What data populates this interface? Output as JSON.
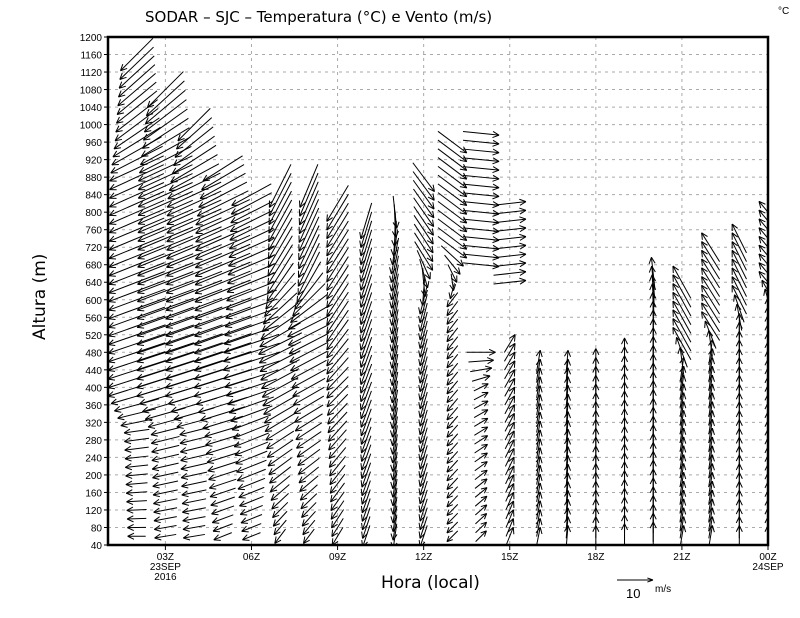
{
  "chart_data": {
    "type": "vector",
    "title": "SODAR – SJC – Temperatura (°C) e Vento (m/s)",
    "corner_unit": "°C",
    "xlabel": "Hora (local)",
    "ylabel": "Altura (m)",
    "xlim": [
      1,
      24
    ],
    "ylim": [
      40,
      1200
    ],
    "grid": true,
    "x_ticks": [
      {
        "hour": 3,
        "label": "03Z",
        "sub1": "23SEP",
        "sub2": "2016"
      },
      {
        "hour": 6,
        "label": "06Z"
      },
      {
        "hour": 9,
        "label": "09Z"
      },
      {
        "hour": 12,
        "label": "12Z"
      },
      {
        "hour": 15,
        "label": "15Z"
      },
      {
        "hour": 18,
        "label": "18Z"
      },
      {
        "hour": 21,
        "label": "21Z"
      },
      {
        "hour": 24,
        "label": "00Z",
        "sub1": "24SEP"
      }
    ],
    "y_ticks": [
      40,
      80,
      120,
      160,
      200,
      240,
      280,
      320,
      360,
      400,
      440,
      480,
      520,
      560,
      600,
      640,
      680,
      720,
      760,
      800,
      840,
      880,
      920,
      960,
      1000,
      1040,
      1080,
      1120,
      1160,
      1200
    ],
    "level_step_m": 20,
    "reference_vector": {
      "value": 10,
      "unit": "m/s"
    },
    "columns": [
      {
        "hour": 2,
        "segments": [
          [
            60,
            1160,
            [
              [
                60,
                -5,
                0
              ],
              [
                300,
                -7,
                -1
              ],
              [
                400,
                -16,
                -5
              ],
              [
                900,
                -15,
                -7
              ],
              [
                1000,
                -12,
                -9
              ],
              [
                1160,
                -9,
                -9
              ]
            ]
          ]
        ]
      },
      {
        "hour": 3,
        "segments": [
          [
            60,
            1080,
            [
              [
                60,
                -6,
                -1
              ],
              [
                300,
                -8,
                -2
              ],
              [
                400,
                -16,
                -5
              ],
              [
                900,
                -15,
                -7
              ],
              [
                1080,
                -10,
                -10
              ]
            ]
          ]
        ]
      },
      {
        "hour": 4,
        "segments": [
          [
            60,
            1000,
            [
              [
                60,
                -6,
                -1
              ],
              [
                300,
                -8,
                -2
              ],
              [
                400,
                -16,
                -5
              ],
              [
                850,
                -15,
                -7
              ],
              [
                1000,
                -9,
                -9
              ]
            ]
          ]
        ]
      },
      {
        "hour": 5,
        "segments": [
          [
            60,
            900,
            [
              [
                60,
                -5,
                -2
              ],
              [
                300,
                -10,
                -3
              ],
              [
                400,
                -16,
                -5
              ],
              [
                800,
                -15,
                -7
              ],
              [
                900,
                -11,
                -7
              ]
            ]
          ]
        ]
      },
      {
        "hour": 6,
        "segments": [
          [
            60,
            840,
            [
              [
                60,
                -5,
                -2
              ],
              [
                300,
                -10,
                -4
              ],
              [
                450,
                -16,
                -5
              ],
              [
                840,
                -11,
                -6
              ]
            ]
          ]
        ]
      },
      {
        "hour": 7,
        "segments": [
          [
            60,
            860,
            [
              [
                60,
                -3,
                -4
              ],
              [
                300,
                -8,
                -5
              ],
              [
                500,
                -12,
                -6
              ],
              [
                650,
                -7,
                -11
              ],
              [
                860,
                -6,
                -12
              ]
            ]
          ]
        ]
      },
      {
        "hour": 8,
        "segments": [
          [
            60,
            860,
            [
              [
                60,
                -3,
                -4
              ],
              [
                400,
                -9,
                -5
              ],
              [
                550,
                -12,
                -6
              ],
              [
                650,
                -6,
                -12
              ],
              [
                860,
                -5,
                -12
              ]
            ]
          ]
        ]
      },
      {
        "hour": 9,
        "segments": [
          [
            60,
            820,
            [
              [
                60,
                -3,
                -5
              ],
              [
                400,
                -6,
                -6
              ],
              [
                550,
                -6,
                -9
              ],
              [
                820,
                -6,
                -10
              ]
            ]
          ]
        ]
      },
      {
        "hour": 10,
        "segments": [
          [
            60,
            780,
            [
              [
                60,
                -2,
                -6
              ],
              [
                400,
                -3,
                -8
              ],
              [
                780,
                -3,
                -10
              ]
            ]
          ]
        ]
      },
      {
        "hour": 11,
        "segments": [
          [
            60,
            800,
            [
              [
                60,
                -1,
                -7
              ],
              [
                700,
                -2,
                -10
              ],
              [
                800,
                1,
                -9
              ]
            ]
          ]
        ]
      },
      {
        "hour": 12,
        "segments": [
          [
            60,
            880,
            [
              [
                60,
                -2,
                -6
              ],
              [
                600,
                -2,
                -8
              ],
              [
                700,
                5,
                -8
              ],
              [
                880,
                6,
                -8
              ]
            ]
          ]
        ]
      },
      {
        "hour": 13,
        "segments": [
          [
            60,
            960,
            [
              [
                60,
                -3,
                -3
              ],
              [
                600,
                -3,
                -4
              ],
              [
                720,
                8,
                -6
              ],
              [
                960,
                8,
                -6
              ]
            ]
          ]
        ]
      },
      {
        "hour": 14,
        "segments": [
          [
            60,
            480,
            [
              [
                60,
                3,
                3
              ],
              [
                400,
                4,
                2
              ],
              [
                480,
                8,
                0
              ]
            ]
          ],
          [
            680,
            980,
            [
              [
                680,
                10,
                -1
              ],
              [
                980,
                10,
                -1
              ]
            ]
          ]
        ]
      },
      {
        "hour": 15,
        "segments": [
          [
            60,
            500,
            [
              [
                60,
                2,
                5
              ],
              [
                500,
                3,
                5
              ]
            ]
          ],
          [
            640,
            830,
            [
              [
                640,
                9,
                1
              ],
              [
                830,
                9,
                1
              ]
            ]
          ]
        ]
      },
      {
        "hour": 16,
        "segments": [
          [
            60,
            460,
            [
              [
                60,
                1,
                5
              ],
              [
                460,
                1,
                6
              ]
            ]
          ]
        ]
      },
      {
        "hour": 17,
        "segments": [
          [
            60,
            460,
            [
              [
                60,
                0.5,
                6
              ],
              [
                460,
                0.5,
                6
              ]
            ]
          ]
        ]
      },
      {
        "hour": 18,
        "segments": [
          [
            60,
            470,
            [
              [
                60,
                0,
                6
              ],
              [
                470,
                0,
                7
              ]
            ]
          ]
        ]
      },
      {
        "hour": 19,
        "segments": [
          [
            60,
            480,
            [
              [
                60,
                0,
                7
              ],
              [
                480,
                0,
                8
              ]
            ]
          ]
        ]
      },
      {
        "hour": 20,
        "segments": [
          [
            60,
            660,
            [
              [
                60,
                0,
                8
              ],
              [
                550,
                0,
                9
              ],
              [
                660,
                -1,
                9
              ]
            ]
          ]
        ]
      },
      {
        "hour": 21,
        "segments": [
          [
            60,
            640,
            [
              [
                60,
                1,
                6
              ],
              [
                440,
                1,
                7
              ],
              [
                500,
                -5,
                9
              ],
              [
                640,
                -5,
                9
              ]
            ]
          ]
        ]
      },
      {
        "hour": 22,
        "segments": [
          [
            60,
            720,
            [
              [
                60,
                1,
                6
              ],
              [
                480,
                1,
                7
              ],
              [
                540,
                -5,
                8
              ],
              [
                720,
                -5,
                8
              ]
            ]
          ]
        ]
      },
      {
        "hour": 23,
        "segments": [
          [
            60,
            740,
            [
              [
                60,
                0,
                6
              ],
              [
                540,
                0,
                7
              ],
              [
                600,
                -4,
                8
              ],
              [
                740,
                -4,
                8
              ]
            ]
          ]
        ]
      },
      {
        "hour": 24,
        "segments": [
          [
            60,
            810,
            [
              [
                60,
                0,
                6
              ],
              [
                580,
                0,
                6
              ],
              [
                640,
                -5,
                6
              ],
              [
                810,
                -5,
                6
              ]
            ]
          ]
        ]
      }
    ]
  }
}
